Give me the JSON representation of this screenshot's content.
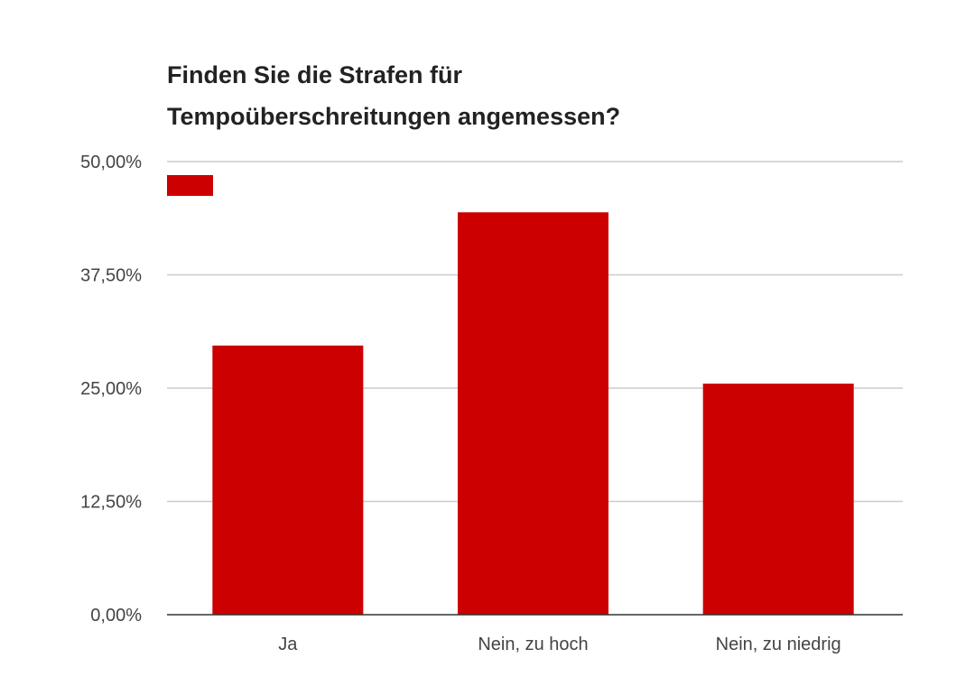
{
  "chart_data": {
    "type": "bar",
    "title_lines": [
      "Finden Sie die Strafen für",
      "Tempoüberschreitungen angemessen?"
    ],
    "categories": [
      "Ja",
      "Nein, zu hoch",
      "Nein, zu niedrig"
    ],
    "values": [
      29.7,
      44.4,
      25.5
    ],
    "ylim": [
      0,
      50
    ],
    "yticks": [
      "0,00%",
      "12,50%",
      "25,00%",
      "37,50%",
      "50,00%"
    ],
    "ytick_values": [
      0,
      12.5,
      25,
      37.5,
      50
    ],
    "grid": true,
    "legend": "top-left",
    "bar_color": "#cc0000"
  }
}
